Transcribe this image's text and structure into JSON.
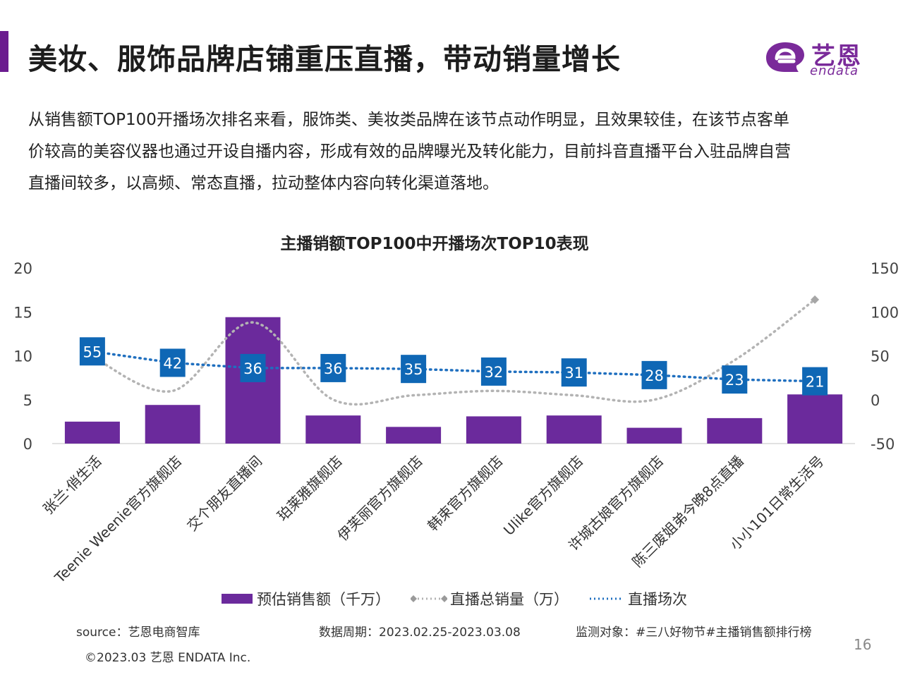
{
  "header": {
    "title": "美妆、服饰品牌店铺重压直播，带动销量增长",
    "logo_cn": "艺恩",
    "logo_en": "endata"
  },
  "intro": {
    "lines": [
      "从销售额TOP100开播场次排名来看，服饰类、美妆类品牌在该节点动作明显，且效果较佳，在该节点客单",
      "价较高的美容仪器也通过开设自播内容，形成有效的品牌曝光及转化能力，目前抖音直播平台入驻品牌自营",
      "直播间较多，以高频、常态直播，拉动整体内容向转化渠道落地。"
    ]
  },
  "chart_data": {
    "type": "bar",
    "title": "主播销额TOP100中开播场次TOP10表现",
    "categories": [
      "张兰·俏生活",
      "Teenie Weenie官方旗舰店",
      "交个朋友直播间",
      "珀莱雅旗舰店",
      "伊芙丽官方旗舰店",
      "韩束官方旗舰店",
      "Ulike官方旗舰店",
      "许城古娘官方旗舰店",
      "陈三废姐弟今晚8点直播",
      "小小101日常生活号"
    ],
    "series": [
      {
        "name": "预估销售额（千万）",
        "type": "bar",
        "axis": "left",
        "color": "#6b2a9c",
        "values": [
          2.5,
          4.4,
          14.4,
          3.2,
          1.9,
          3.1,
          3.2,
          1.8,
          2.9,
          5.6
        ]
      },
      {
        "name": "直播总销量（万）",
        "type": "line",
        "axis": "right",
        "style": "dotted-with-diamonds",
        "color": "#b3b3b3",
        "values": [
          49,
          10,
          88,
          0,
          5,
          10,
          5,
          0,
          45,
          114
        ]
      },
      {
        "name": "直播场次",
        "type": "line",
        "axis": "right",
        "style": "dotted-with-labels",
        "color": "#1f6fbf",
        "values": [
          55,
          42,
          36,
          36,
          35,
          32,
          31,
          28,
          23,
          21
        ]
      }
    ],
    "y_left": {
      "ylim": [
        0,
        20
      ],
      "ticks": [
        "0",
        "5",
        "10",
        "15",
        "20"
      ]
    },
    "y_right": {
      "ylim": [
        -50,
        150
      ],
      "ticks": [
        "-50",
        "0",
        "50",
        "100",
        "150"
      ]
    },
    "legend_position": "bottom",
    "grid": false
  },
  "footer": {
    "source": "source：艺恩电商智库",
    "period": "数据周期：2023.02.25-2023.03.08",
    "monitor": "监测对象：#三八好物节#主播销售额排行榜",
    "copyright": "©2023.03 艺恩 ENDATA Inc.",
    "page": "16"
  }
}
